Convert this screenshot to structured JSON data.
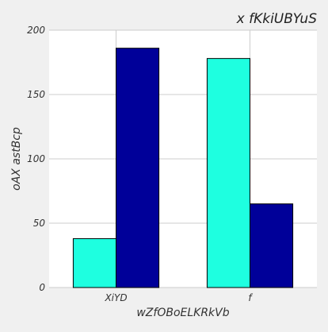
{
  "chart_data": {
    "type": "bar",
    "title": "x fKkiUBYuS",
    "xlabel": "wZfOBoELKRkVb",
    "ylabel": "oAX astBcp",
    "categories": [
      "XiYD",
      "f"
    ],
    "series": [
      {
        "values": [
          38,
          178
        ],
        "color": "#1effe0"
      },
      {
        "values": [
          186,
          65
        ],
        "color": "#000099"
      }
    ],
    "ylim": [
      0,
      200
    ],
    "yticks": [
      0,
      50,
      100,
      150,
      200
    ],
    "grid": true,
    "legend": "none"
  },
  "colors": {
    "background": "#f0f0f0",
    "plot_background": "#ffffff",
    "grid": "#cccccc",
    "bar_edge": "#000000"
  }
}
